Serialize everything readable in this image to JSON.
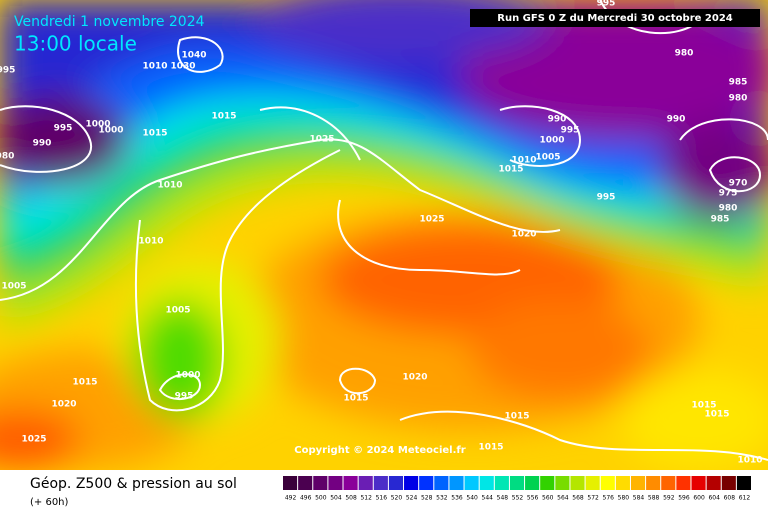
{
  "header": {
    "date": "Vendredi 1 novembre 2024",
    "time": "13:00 locale",
    "run": "Run GFS 0 Z du Mercredi 30 octobre 2024"
  },
  "copyright": "Copyright © 2024 Meteociel.fr",
  "footer": {
    "title": "Géop. Z500 & pression au sol",
    "subtitle": "(+ 60h)"
  },
  "isobar_labels": [
    "1040",
    "1010",
    "1030",
    "995",
    "995",
    "1000",
    "1000",
    "990",
    "980",
    "1015",
    "1015",
    "1025",
    "1010",
    "1010",
    "1005",
    "1005",
    "1000",
    "995",
    "1015",
    "1020",
    "1025",
    "1020",
    "1015",
    "1025",
    "1020",
    "1015",
    "1010",
    "1005",
    "1000",
    "990",
    "995",
    "995",
    "990",
    "980",
    "985",
    "980",
    "970",
    "975",
    "980",
    "985",
    "995",
    "1015",
    "1015",
    "1015",
    "1015",
    "1010"
  ],
  "scale": {
    "labels": [
      492,
      496,
      500,
      504,
      508,
      512,
      516,
      520,
      524,
      528,
      532,
      536,
      540,
      544,
      548,
      552,
      556,
      560,
      564,
      568,
      572,
      576,
      580,
      584,
      588,
      592,
      596,
      600,
      604,
      608,
      612
    ],
    "colors": [
      "#3a003a",
      "#4b0050",
      "#5f0069",
      "#730082",
      "#8a0099",
      "#6a1eb4",
      "#4b2dc8",
      "#2828d2",
      "#0000e6",
      "#0032ff",
      "#0064ff",
      "#0096ff",
      "#00c8ff",
      "#00e6e6",
      "#00e6b4",
      "#00dc82",
      "#00d250",
      "#32d200",
      "#78dc00",
      "#b4e600",
      "#e6f000",
      "#ffff00",
      "#ffdc00",
      "#ffb400",
      "#ff8c00",
      "#ff6400",
      "#ff3200",
      "#e60000",
      "#b40000",
      "#780000",
      "#000000"
    ]
  }
}
